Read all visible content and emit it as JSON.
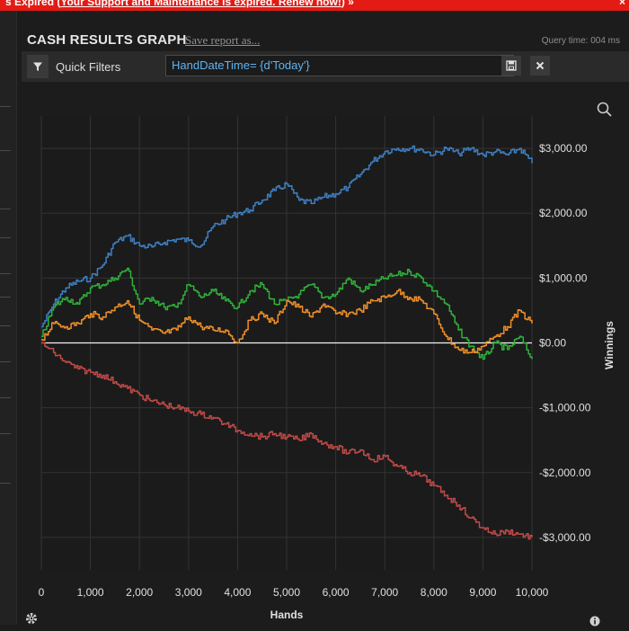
{
  "banner": {
    "lead": "s   Expired (",
    "link": "Your Support and Maintenance is expired. Renew now!",
    "tail": ")  »",
    "close": "×"
  },
  "header": {
    "title": "CASH RESULTS GRAPH",
    "save_link": "Save report as...",
    "query_time": "Query time: 004 ms"
  },
  "filters": {
    "label": "Quick Filters",
    "expression": "HandDateTime= {d'Today'}"
  },
  "chart_data": {
    "type": "line",
    "xlabel": "Hands",
    "ylabel": "Winnings",
    "xlim": [
      0,
      10000
    ],
    "ylim": [
      -3500,
      3500
    ],
    "x_ticks": [
      0,
      1000,
      2000,
      3000,
      4000,
      5000,
      6000,
      7000,
      8000,
      9000,
      10000
    ],
    "x_tick_labels": [
      "0",
      "1,000",
      "2,000",
      "3,000",
      "4,000",
      "5,000",
      "6,000",
      "7,000",
      "8,000",
      "9,000",
      "10,000"
    ],
    "y_ticks": [
      3000,
      2000,
      1000,
      0,
      -1000,
      -2000,
      -3000
    ],
    "y_tick_labels": [
      "$3,000.00",
      "$2,000.00",
      "$1,000.00",
      "$0.00",
      "-$1,000.00",
      "-$2,000.00",
      "-$3,000.00"
    ],
    "grid": true,
    "x": [
      0,
      250,
      500,
      750,
      1000,
      1250,
      1500,
      1750,
      2000,
      2250,
      2500,
      2750,
      3000,
      3250,
      3500,
      3750,
      4000,
      4250,
      4500,
      4750,
      5000,
      5250,
      5500,
      5750,
      6000,
      6250,
      6500,
      6750,
      7000,
      7250,
      7500,
      7750,
      8000,
      8250,
      8500,
      8750,
      9000,
      9250,
      9500,
      9750,
      10000
    ],
    "series": [
      {
        "color": "#3e7fc1",
        "values": [
          250,
          600,
          850,
          950,
          1000,
          1200,
          1550,
          1650,
          1500,
          1480,
          1550,
          1600,
          1580,
          1500,
          1800,
          1900,
          2000,
          2050,
          2200,
          2350,
          2450,
          2200,
          2150,
          2250,
          2300,
          2400,
          2600,
          2800,
          2950,
          3000,
          3000,
          2980,
          2900,
          3000,
          2920,
          3000,
          2900,
          2950,
          2900,
          3000,
          2770
        ]
      },
      {
        "color": "#2fb13a",
        "values": [
          100,
          550,
          700,
          600,
          850,
          900,
          1000,
          1150,
          600,
          700,
          550,
          550,
          900,
          700,
          800,
          650,
          550,
          800,
          900,
          600,
          650,
          750,
          900,
          700,
          750,
          1000,
          800,
          900,
          1000,
          1050,
          1100,
          1000,
          800,
          600,
          200,
          -50,
          -250,
          0,
          -100,
          100,
          -250
        ]
      },
      {
        "color": "#ee8f2a",
        "values": [
          50,
          300,
          250,
          300,
          450,
          400,
          550,
          650,
          350,
          200,
          150,
          200,
          400,
          250,
          200,
          200,
          0,
          350,
          450,
          300,
          650,
          550,
          400,
          600,
          450,
          450,
          500,
          650,
          700,
          800,
          700,
          650,
          450,
          100,
          -100,
          -150,
          -50,
          100,
          250,
          500,
          300
        ]
      },
      {
        "color": "#c04a48",
        "values": [
          0,
          -150,
          -300,
          -400,
          -450,
          -500,
          -600,
          -700,
          -800,
          -900,
          -950,
          -1000,
          -1050,
          -1100,
          -1150,
          -1250,
          -1350,
          -1400,
          -1450,
          -1400,
          -1450,
          -1500,
          -1400,
          -1550,
          -1600,
          -1700,
          -1650,
          -1800,
          -1750,
          -1900,
          -2000,
          -2050,
          -2200,
          -2350,
          -2500,
          -2700,
          -2850,
          -2950,
          -2900,
          -2950,
          -3000
        ]
      }
    ]
  }
}
